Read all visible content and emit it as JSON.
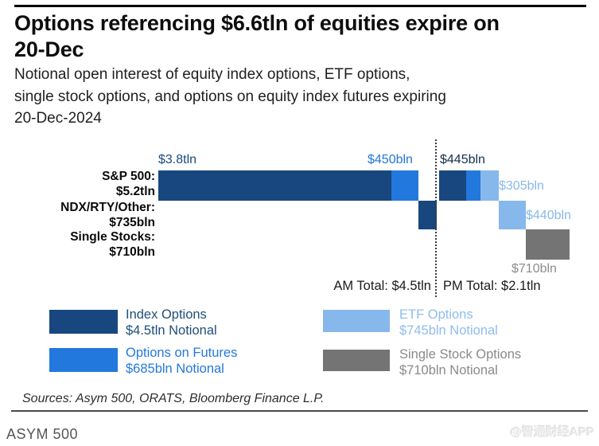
{
  "header": {
    "title_line1": "Options referencing $6.6tln of equities expire on",
    "title_line2": "20-Dec",
    "subtitle_lines": [
      "Notional open interest of equity index options, ETF options,",
      "single stock options, and options on equity index futures expiring",
      "20-Dec-2024"
    ]
  },
  "chart_data": {
    "type": "bar",
    "orientation": "horizontal-stacked-waterfall",
    "unit": "USD bln notional",
    "grid": false,
    "divider": "dotted vertical line separating AM and PM expirations",
    "categories": [
      "S&P 500: $5.2tln",
      "NDX/RTY/Other: $735bln",
      "Single Stocks: $710bln"
    ],
    "rows": [
      {
        "label_line1": "S&P 500:",
        "label_line2": "$5.2tln",
        "am_segments": [
          {
            "series": "index_options",
            "value_bln": 3800
          },
          {
            "series": "options_on_futures",
            "value_bln": 450
          }
        ],
        "pm_segments": [
          {
            "series": "index_options",
            "value_bln": 445
          },
          {
            "series": "options_on_futures",
            "value_bln": 235
          },
          {
            "series": "etf_options",
            "value_bln": 305
          }
        ]
      },
      {
        "label_line1": "NDX/RTY/Other:",
        "label_line2": "$735bln",
        "am_segments": [
          {
            "series": "index_options",
            "value_bln": 295
          }
        ],
        "pm_segments": [
          {
            "series": "etf_options",
            "value_bln": 440
          }
        ]
      },
      {
        "label_line1": "Single Stocks:",
        "label_line2": "$710bln",
        "am_segments": [],
        "pm_segments": [
          {
            "series": "single_stock_options",
            "value_bln": 710
          }
        ]
      }
    ],
    "bar_labels": {
      "sp500_am_index": "$3.8tln",
      "sp500_am_futures": "$450bln",
      "sp500_pm_index": "$445bln",
      "sp500_pm_etf": "$305bln",
      "ndx_pm_etf": "$440bln",
      "single_stocks_pm": "$710bln"
    },
    "totals": {
      "am": "AM Total: $4.5tln",
      "pm": "PM Total: $2.1tln"
    },
    "legend": [
      {
        "series": "index_options",
        "line1": "Index Options",
        "line2": "$4.5tln Notional"
      },
      {
        "series": "options_on_futures",
        "line1": "Options on Futures",
        "line2": "$685bln Notional"
      },
      {
        "series": "etf_options",
        "line1": "ETF Options",
        "line2": "$745bln Notional"
      },
      {
        "series": "single_stock_options",
        "line1": "Single Stock Options",
        "line2": "$710bln Notional"
      }
    ],
    "colors": {
      "index_options": "#17477E",
      "options_on_futures": "#2278DC",
      "etf_options": "#87B8EC",
      "single_stock_options": "#747474",
      "label_navy": "#1C4A7C",
      "label_dark_navy": "#14304F",
      "label_light_blue": "#87B8EC",
      "label_blue": "#2176D9",
      "label_gray": "#8C8C8C",
      "totals_text": "#1A1A1A",
      "legend_navy_text": "#1F4E79",
      "legend_blue_text": "#2478DE",
      "legend_lightblue_text": "#8FBCEF",
      "legend_gray_text": "#8A8A8A"
    }
  },
  "footer": {
    "sources": "Sources: Asym 500, ORATS, Bloomberg Finance L.P.",
    "brand": "ASYM 500",
    "watermark": "@智通财经APP"
  }
}
